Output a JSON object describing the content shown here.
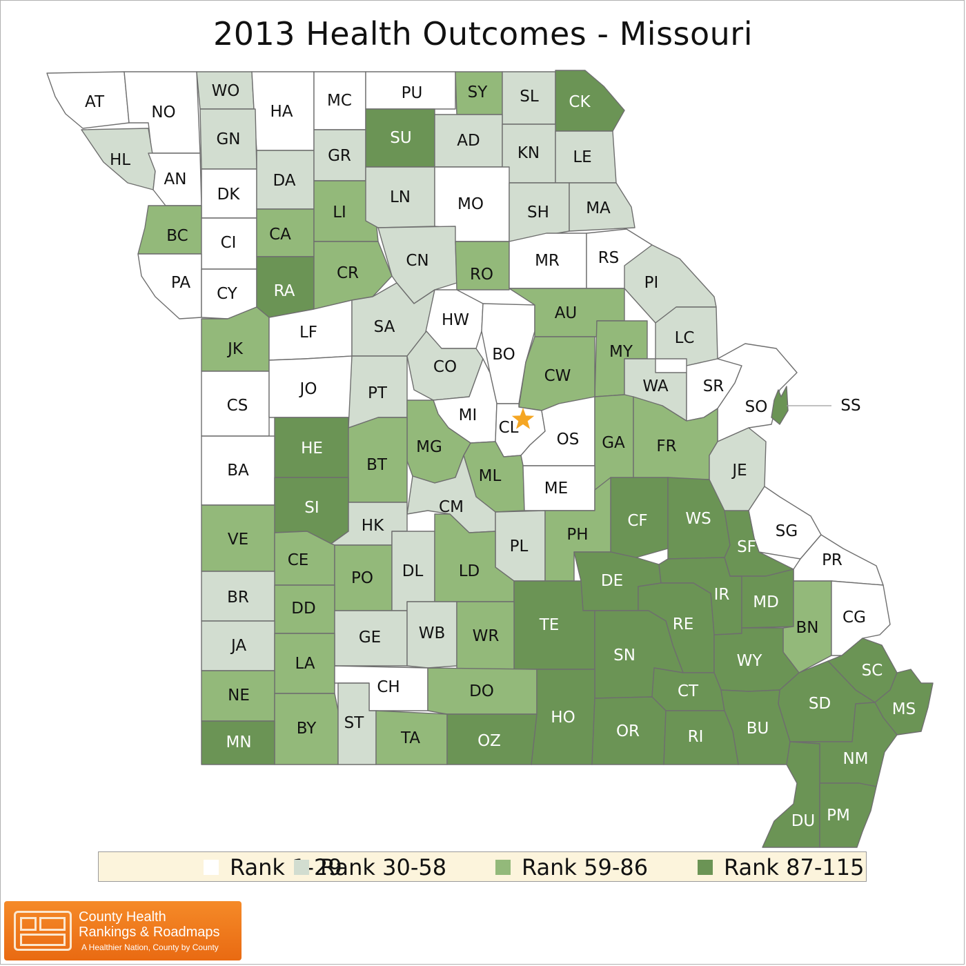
{
  "title": "2013 Health Outcomes - Missouri",
  "rank_colors": {
    "1": "#ffffff",
    "2": "#d2ddd0",
    "3": "#93b97a",
    "4": "#6b9455"
  },
  "legend": [
    {
      "label": "Rank 1-29",
      "rank": 1
    },
    {
      "label": "Rank 30-58",
      "rank": 2
    },
    {
      "label": "Rank 59-86",
      "rank": 3
    },
    {
      "label": "Rank 87-115",
      "rank": 4
    }
  ],
  "counties": [
    {
      "abbr": "AT",
      "rank": 1
    },
    {
      "abbr": "NO",
      "rank": 1
    },
    {
      "abbr": "WO",
      "rank": 2
    },
    {
      "abbr": "HA",
      "rank": 1
    },
    {
      "abbr": "MC",
      "rank": 1
    },
    {
      "abbr": "PU",
      "rank": 1
    },
    {
      "abbr": "SY",
      "rank": 3
    },
    {
      "abbr": "SL",
      "rank": 2
    },
    {
      "abbr": "CK",
      "rank": 4
    },
    {
      "abbr": "HL",
      "rank": 2
    },
    {
      "abbr": "AN",
      "rank": 1
    },
    {
      "abbr": "GN",
      "rank": 2
    },
    {
      "abbr": "DK",
      "rank": 1
    },
    {
      "abbr": "DA",
      "rank": 2
    },
    {
      "abbr": "GR",
      "rank": 2
    },
    {
      "abbr": "SU",
      "rank": 4
    },
    {
      "abbr": "AD",
      "rank": 2
    },
    {
      "abbr": "KN",
      "rank": 2
    },
    {
      "abbr": "LE",
      "rank": 2
    },
    {
      "abbr": "BC",
      "rank": 3
    },
    {
      "abbr": "CI",
      "rank": 1
    },
    {
      "abbr": "CA",
      "rank": 3
    },
    {
      "abbr": "LI",
      "rank": 3
    },
    {
      "abbr": "LN",
      "rank": 2
    },
    {
      "abbr": "MO",
      "rank": 1
    },
    {
      "abbr": "SH",
      "rank": 2
    },
    {
      "abbr": "MA",
      "rank": 2
    },
    {
      "abbr": "PA",
      "rank": 1
    },
    {
      "abbr": "CY",
      "rank": 1
    },
    {
      "abbr": "RA",
      "rank": 4
    },
    {
      "abbr": "CR",
      "rank": 3
    },
    {
      "abbr": "CN",
      "rank": 2
    },
    {
      "abbr": "RO",
      "rank": 3
    },
    {
      "abbr": "MR",
      "rank": 1
    },
    {
      "abbr": "RS",
      "rank": 1
    },
    {
      "abbr": "PI",
      "rank": 2
    },
    {
      "abbr": "JK",
      "rank": 3
    },
    {
      "abbr": "LF",
      "rank": 1
    },
    {
      "abbr": "SA",
      "rank": 2
    },
    {
      "abbr": "HW",
      "rank": 1
    },
    {
      "abbr": "BO",
      "rank": 1
    },
    {
      "abbr": "AU",
      "rank": 3
    },
    {
      "abbr": "MY",
      "rank": 3
    },
    {
      "abbr": "LC",
      "rank": 2
    },
    {
      "abbr": "CS",
      "rank": 1
    },
    {
      "abbr": "JO",
      "rank": 1
    },
    {
      "abbr": "PT",
      "rank": 2
    },
    {
      "abbr": "CO",
      "rank": 2
    },
    {
      "abbr": "CW",
      "rank": 3
    },
    {
      "abbr": "WA",
      "rank": 2
    },
    {
      "abbr": "SR",
      "rank": 1
    },
    {
      "abbr": "SO",
      "rank": 1
    },
    {
      "abbr": "SS",
      "rank": 4
    },
    {
      "abbr": "MI",
      "rank": 1
    },
    {
      "abbr": "CL",
      "rank": 1
    },
    {
      "abbr": "OS",
      "rank": 1
    },
    {
      "abbr": "GA",
      "rank": 3
    },
    {
      "abbr": "FR",
      "rank": 3
    },
    {
      "abbr": "HE",
      "rank": 4
    },
    {
      "abbr": "MG",
      "rank": 3
    },
    {
      "abbr": "BT",
      "rank": 3
    },
    {
      "abbr": "ML",
      "rank": 3
    },
    {
      "abbr": "ME",
      "rank": 1
    },
    {
      "abbr": "JE",
      "rank": 2
    },
    {
      "abbr": "BA",
      "rank": 1
    },
    {
      "abbr": "SI",
      "rank": 4
    },
    {
      "abbr": "CM",
      "rank": 2
    },
    {
      "abbr": "CF",
      "rank": 4
    },
    {
      "abbr": "WS",
      "rank": 4
    },
    {
      "abbr": "VE",
      "rank": 3
    },
    {
      "abbr": "HK",
      "rank": 2
    },
    {
      "abbr": "PL",
      "rank": 2
    },
    {
      "abbr": "PH",
      "rank": 3
    },
    {
      "abbr": "SG",
      "rank": 1
    },
    {
      "abbr": "SF",
      "rank": 4
    },
    {
      "abbr": "CE",
      "rank": 3
    },
    {
      "abbr": "PO",
      "rank": 3
    },
    {
      "abbr": "DL",
      "rank": 2
    },
    {
      "abbr": "LD",
      "rank": 3
    },
    {
      "abbr": "DE",
      "rank": 4
    },
    {
      "abbr": "IR",
      "rank": 4
    },
    {
      "abbr": "PR",
      "rank": 1
    },
    {
      "abbr": "MD",
      "rank": 4
    },
    {
      "abbr": "BR",
      "rank": 2
    },
    {
      "abbr": "DD",
      "rank": 3
    },
    {
      "abbr": "TE",
      "rank": 4
    },
    {
      "abbr": "RE",
      "rank": 4
    },
    {
      "abbr": "BN",
      "rank": 3
    },
    {
      "abbr": "CG",
      "rank": 1
    },
    {
      "abbr": "GE",
      "rank": 2
    },
    {
      "abbr": "WB",
      "rank": 2
    },
    {
      "abbr": "WR",
      "rank": 3
    },
    {
      "abbr": "SN",
      "rank": 4
    },
    {
      "abbr": "JA",
      "rank": 2
    },
    {
      "abbr": "WY",
      "rank": 4
    },
    {
      "abbr": "LA",
      "rank": 3
    },
    {
      "abbr": "CH",
      "rank": 1
    },
    {
      "abbr": "SC",
      "rank": 4
    },
    {
      "abbr": "DO",
      "rank": 3
    },
    {
      "abbr": "CT",
      "rank": 4
    },
    {
      "abbr": "NE",
      "rank": 3
    },
    {
      "abbr": "SD",
      "rank": 4
    },
    {
      "abbr": "MS",
      "rank": 4
    },
    {
      "abbr": "BY",
      "rank": 3
    },
    {
      "abbr": "ST",
      "rank": 2
    },
    {
      "abbr": "HO",
      "rank": 4
    },
    {
      "abbr": "BU",
      "rank": 4
    },
    {
      "abbr": "TA",
      "rank": 3
    },
    {
      "abbr": "OZ",
      "rank": 4
    },
    {
      "abbr": "OR",
      "rank": 4
    },
    {
      "abbr": "RI",
      "rank": 4
    },
    {
      "abbr": "MN",
      "rank": 4
    },
    {
      "abbr": "NM",
      "rank": 4
    },
    {
      "abbr": "DU",
      "rank": 4
    },
    {
      "abbr": "PM",
      "rank": 4
    }
  ],
  "capital_marker": {
    "county": "CL",
    "color": "#f5a623",
    "icon": "star-icon"
  },
  "logo": {
    "line1": "County Health",
    "line2": "Rankings & Roadmaps",
    "tagline": "A Healthier Nation, County by County"
  }
}
